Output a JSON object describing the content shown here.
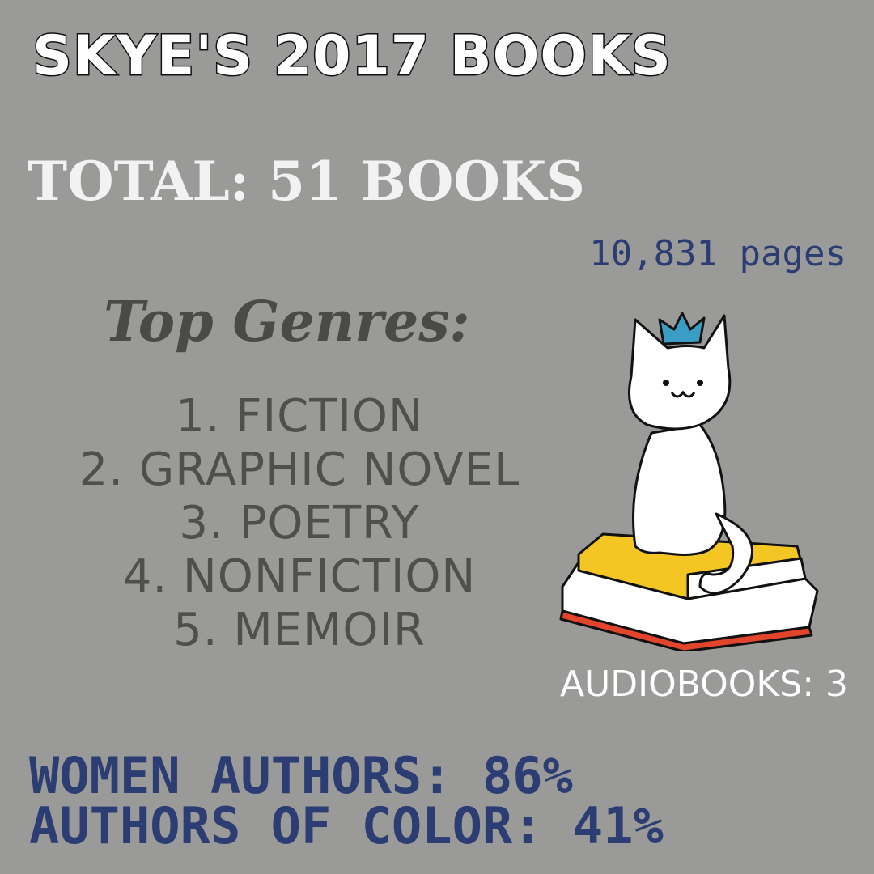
{
  "title": "SKYE'S 2017 BOOKS",
  "total": "TOTAL: 51 BOOKS",
  "pages": "10,831 pages",
  "genres_title": "Top Genres:",
  "genres": [
    "1. FICTION",
    "2. GRAPHIC NOVEL",
    "3. POETRY",
    "4. NONFICTION",
    "5. MEMOIR"
  ],
  "audiobooks": "AUDIOBOOKS: 3",
  "women_authors": "WOMEN AUTHORS: 86%",
  "authors_of_color": "AUTHORS OF COLOR: 41%",
  "colors": {
    "background": "#9a9b99",
    "blue": "#2b3d73",
    "crown": "#3a9ec4",
    "book_yellow": "#f3c623",
    "book_red": "#e2452b"
  },
  "illustration": "cat-with-crown-on-books"
}
